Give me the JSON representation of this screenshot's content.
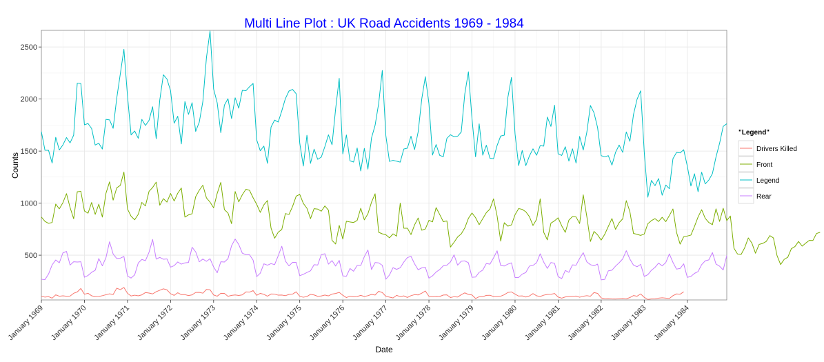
{
  "chart_data": {
    "type": "line",
    "title": "Multi Line Plot : UK Road Accidents 1969 - 1984",
    "title_color": "#0000ff",
    "xlabel": "Date",
    "ylabel": "Counts",
    "xlim": [
      "1969-01",
      "1984-12"
    ],
    "ylim": [
      70,
      2660
    ],
    "y_ticks": [
      500,
      1000,
      1500,
      2000,
      2500
    ],
    "x_ticks": [
      "1969-01",
      "1970-01",
      "1971-01",
      "1972-01",
      "1973-01",
      "1974-01",
      "1975-01",
      "1976-01",
      "1977-01",
      "1978-01",
      "1979-01",
      "1980-01",
      "1981-01",
      "1982-01",
      "1983-01",
      "1984-01"
    ],
    "x_tick_labels": [
      "January 1969",
      "January 1970",
      "January 1971",
      "January 1972",
      "January 1973",
      "January 1974",
      "January 1975",
      "January 1976",
      "January 1977",
      "January 1978",
      "January 1979",
      "January 1980",
      "January 1981",
      "January 1982",
      "January 1983",
      "January 1984"
    ],
    "grid": true,
    "legend": {
      "title": "\"Legend\"",
      "position": "right"
    },
    "series": [
      {
        "name": "Drivers Killed",
        "color": "#f8766d",
        "values": [
          107,
          97,
          102,
          87,
          119,
          106,
          110,
          106,
          107,
          134,
          147,
          180,
          125,
          134,
          110,
          102,
          103,
          111,
          120,
          129,
          122,
          183,
          169,
          190,
          134,
          108,
          116,
          110,
          119,
          141,
          136,
          128,
          149,
          163,
          177,
          167,
          130,
          114,
          139,
          121,
          121,
          112,
          119,
          142,
          143,
          135,
          171,
          168,
          118,
          106,
          134,
          133,
          105,
          114,
          118,
          113,
          119,
          147,
          145,
          160,
          114,
          133,
          124,
          106,
          127,
          126,
          116,
          117,
          111,
          123,
          126,
          148,
          105,
          96,
          103,
          124,
          118,
          105,
          108,
          117,
          109,
          126,
          132,
          143,
          115,
          93,
          107,
          101,
          103,
          114,
          103,
          111,
          123,
          117,
          153,
          141,
          105,
          97,
          89,
          114,
          102,
          109,
          94,
          111,
          121,
          118,
          135,
          156,
          105,
          101,
          104,
          103,
          117,
          119,
          93,
          101,
          98,
          120,
          138,
          123,
          118,
          84,
          101,
          101,
          114,
          115,
          103,
          103,
          106,
          120,
          142,
          147,
          126,
          107,
          109,
          98,
          108,
          131,
          110,
          103,
          116,
          123,
          124,
          132,
          98,
          87,
          99,
          102,
          105,
          107,
          96,
          106,
          111,
          106,
          141,
          133,
          90,
          81,
          82,
          80,
          79,
          82,
          84,
          80,
          93,
          112,
          106,
          128,
          95,
          75,
          80,
          80,
          87,
          91,
          87,
          84,
          111,
          128,
          125,
          148
        ]
      },
      {
        "name": "Front",
        "color": "#7cae00",
        "values": [
          867,
          825,
          806,
          814,
          991,
          945,
          1004,
          1091,
          958,
          850,
          1109,
          1113,
          925,
          903,
          1006,
          892,
          990,
          866,
          1095,
          1204,
          1029,
          1147,
          1171,
          1299,
          944,
          874,
          840,
          893,
          1007,
          973,
          1113,
          1150,
          1202,
          980,
          1043,
          1010,
          1093,
          1020,
          1095,
          1145,
          866,
          887,
          898,
          1062,
          1124,
          1172,
          1050,
          1010,
          955,
          1094,
          1199,
          938,
          905,
          803,
          1112,
          1012,
          1081,
          1133,
          1123,
          1052,
          989,
          911,
          984,
          1025,
          760,
          663,
          721,
          747,
          900,
          891,
          968,
          1067,
          1084,
          998,
          951,
          851,
          947,
          943,
          922,
          973,
          932,
          642,
          607,
          786,
          655,
          826,
          819,
          814,
          834,
          951,
          839,
          898,
          1009,
          1090,
          720,
          705,
          696,
          667,
          705,
          683,
          1000,
          759,
          759,
          698,
          791,
          857,
          740,
          752,
          835,
          820,
          957,
          891,
          822,
          829,
          578,
          624,
          675,
          704,
          762,
          854,
          905,
          860,
          793,
          851,
          909,
          943,
          1041,
          877,
          635,
          812,
          779,
          791,
          889,
          948,
          940,
          917,
          870,
          785,
          844,
          1041,
          719,
          647,
          808,
          830,
          859,
          782,
          719,
          837,
          871,
          867,
          804,
          1080,
          871,
          632,
          728,
          695,
          645,
          701,
          777,
          852,
          748,
          812,
          849,
          1024,
          918,
          709,
          700,
          690,
          703,
          802,
          832,
          851,
          824,
          864,
          822,
          881,
          944,
          719,
          606,
          677,
          684,
          693,
          776,
          867,
          937,
          854,
          814,
          793,
          945,
          824,
          951,
          832,
          876,
          567,
          511,
          507,
          572,
          666,
          616,
          519,
          603,
          613,
          632,
          688,
          666,
          497,
          410,
          460,
          480,
          562,
          583,
          632,
          587,
          616,
          642,
          641,
          708,
          720
        ]
      },
      {
        "name": "Legend",
        "color": "#00bfc4",
        "values": [
          1687,
          1508,
          1507,
          1385,
          1632,
          1511,
          1559,
          1630,
          1579,
          1653,
          2152,
          2148,
          1752,
          1765,
          1717,
          1558,
          1575,
          1520,
          1805,
          1800,
          1719,
          2008,
          2242,
          2478,
          2030,
          1655,
          1693,
          1623,
          1805,
          1746,
          1795,
          1926,
          1619,
          1992,
          2233,
          2192,
          2080,
          1768,
          1835,
          1569,
          1976,
          1853,
          1965,
          1689,
          1778,
          1976,
          2397,
          2654,
          2097,
          1963,
          1677,
          1941,
          2003,
          1813,
          2012,
          1912,
          2084,
          2080,
          2118,
          2150,
          1608,
          1503,
          1548,
          1382,
          1731,
          1798,
          1779,
          1887,
          2004,
          2077,
          2092,
          2051,
          1577,
          1356,
          1652,
          1382,
          1519,
          1421,
          1442,
          1543,
          1656,
          1561,
          1905,
          2199,
          1473,
          1655,
          1407,
          1395,
          1530,
          1309,
          1526,
          1327,
          1627,
          1748,
          1958,
          2274,
          1648,
          1401,
          1411,
          1403,
          1394,
          1520,
          1528,
          1643,
          1515,
          1685,
          2000,
          2215,
          1956,
          1462,
          1563,
          1459,
          1446,
          1622,
          1657,
          1638,
          1643,
          1683,
          2050,
          2262,
          1813,
          1445,
          1762,
          1461,
          1556,
          1431,
          1427,
          1554,
          1645,
          1653,
          2016,
          2207,
          1665,
          1361,
          1506,
          1360,
          1453,
          1522,
          1460,
          1552,
          1548,
          1827,
          1737,
          1941,
          1474,
          1458,
          1542,
          1404,
          1522,
          1385,
          1641,
          1510,
          1681,
          1938,
          1868,
          1726,
          1456,
          1445,
          1456,
          1365,
          1487,
          1558,
          1488,
          1684,
          1594,
          1850,
          1998,
          2079,
          1494,
          1057,
          1218,
          1168,
          1236,
          1076,
          1174,
          1139,
          1427,
          1487,
          1483,
          1513,
          1357,
          1165,
          1282,
          1110,
          1297,
          1185,
          1222,
          1284,
          1444,
          1575,
          1737,
          1763
        ]
      },
      {
        "name": "Rear",
        "color": "#c77cff",
        "values": [
          269,
          265,
          319,
          407,
          454,
          427,
          522,
          536,
          405,
          437,
          434,
          437,
          288,
          305,
          335,
          355,
          468,
          398,
          477,
          629,
          511,
          468,
          471,
          488,
          300,
          280,
          311,
          425,
          459,
          447,
          528,
          651,
          462,
          479,
          461,
          464,
          385,
          399,
          435,
          414,
          426,
          430,
          576,
          532,
          436,
          463,
          441,
          466,
          387,
          331,
          437,
          434,
          466,
          591,
          655,
          603,
          519,
          505,
          504,
          453,
          294,
          327,
          417,
          404,
          419,
          409,
          494,
          586,
          444,
          397,
          431,
          431,
          303,
          316,
          334,
          350,
          409,
          405,
          505,
          514,
          414,
          448,
          396,
          450,
          301,
          298,
          372,
          346,
          401,
          401,
          486,
          550,
          362,
          429,
          426,
          403,
          269,
          310,
          380,
          364,
          379,
          434,
          477,
          489,
          417,
          360,
          378,
          384,
          279,
          302,
          338,
          362,
          398,
          404,
          435,
          503,
          404,
          442,
          445,
          427,
          288,
          290,
          335,
          357,
          420,
          414,
          474,
          542,
          400,
          396,
          414,
          426,
          285,
          286,
          318,
          334,
          395,
          402,
          427,
          513,
          433,
          373,
          429,
          422,
          294,
          275,
          353,
          335,
          407,
          404,
          469,
          524,
          436,
          409,
          398,
          414,
          263,
          268,
          350,
          356,
          395,
          427,
          464,
          543,
          462,
          405,
          389,
          412,
          296,
          312,
          355,
          383,
          424,
          397,
          429,
          512,
          431,
          366,
          373,
          417,
          287,
          296,
          325,
          343,
          409,
          446,
          455,
          525,
          415,
          394,
          358,
          497
        ]
      }
    ]
  }
}
